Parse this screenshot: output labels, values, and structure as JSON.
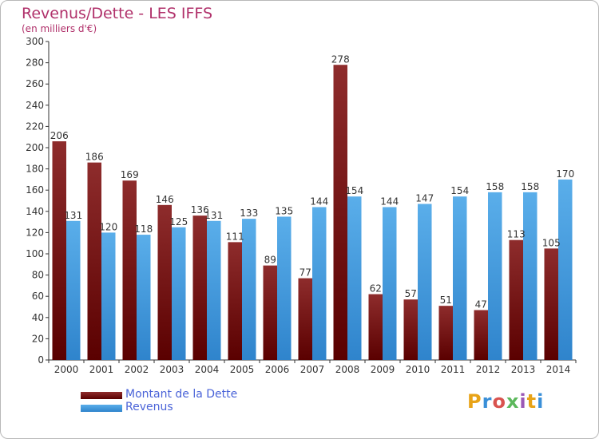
{
  "header": {
    "title": "Revenus/Dette - LES IFFS",
    "subtitle": "(en milliers d'€)"
  },
  "chart_data": {
    "type": "bar",
    "categories": [
      "2000",
      "2001",
      "2002",
      "2003",
      "2004",
      "2005",
      "2006",
      "2007",
      "2008",
      "2009",
      "2010",
      "2011",
      "2012",
      "2013",
      "2014"
    ],
    "series": [
      {
        "name": "Montant de la Dette",
        "color": "#8b1a1a",
        "values": [
          206,
          186,
          169,
          146,
          136,
          111,
          89,
          77,
          278,
          62,
          57,
          51,
          47,
          113,
          105
        ]
      },
      {
        "name": "Revenus",
        "color": "#3d95db",
        "values": [
          131,
          120,
          118,
          125,
          131,
          133,
          135,
          144,
          154,
          144,
          147,
          154,
          158,
          158,
          170
        ]
      }
    ],
    "ylim": [
      0,
      300
    ],
    "ytick_step": 20,
    "grid": false,
    "legend": "bottom-left"
  },
  "legend": {
    "items": [
      {
        "label": "Montant de la Dette",
        "color": "#8b1a1a"
      },
      {
        "label": "Revenus",
        "color": "#3d95db"
      }
    ]
  },
  "logo": {
    "text": "Proxiti",
    "colors": [
      "#e8a317",
      "#3a8fd8",
      "#d9534f",
      "#5cb85c",
      "#9b59b6",
      "#e8a317",
      "#3a8fd8"
    ]
  }
}
